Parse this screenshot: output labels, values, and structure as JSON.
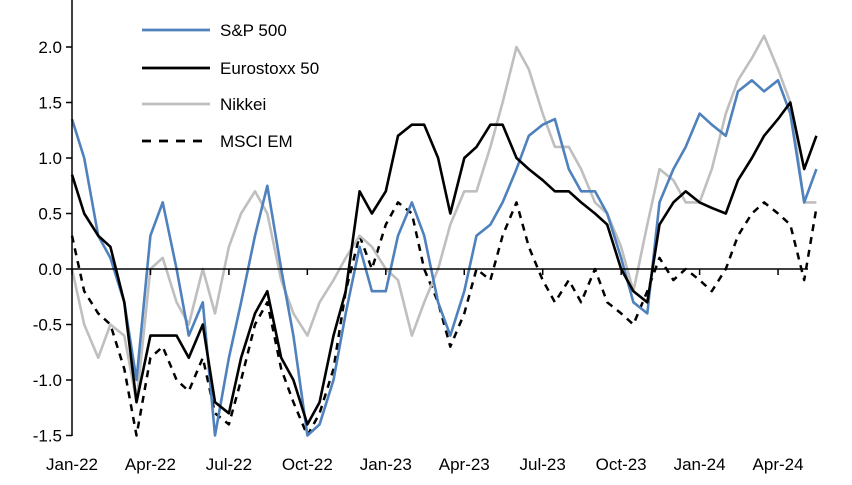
{
  "chart_data": {
    "type": "line",
    "title": "",
    "xlabel": "",
    "ylabel": "",
    "ylim": [
      -1.5,
      2.4
    ],
    "yticks": [
      "2.0",
      "1.5",
      "1.0",
      "0.5",
      "0.0",
      "-0.5",
      "-1.0",
      "-1.5"
    ],
    "ytick_values": [
      2.0,
      1.5,
      1.0,
      0.5,
      0.0,
      -0.5,
      -1.0,
      -1.5
    ],
    "xticks": [
      "Jan-22",
      "Apr-22",
      "Jul-22",
      "Oct-22",
      "Jan-23",
      "Apr-23",
      "Jul-23",
      "Oct-23",
      "Jan-24",
      "Apr-24"
    ],
    "xtick_dates": [
      "2022-01-01",
      "2022-04-01",
      "2022-07-01",
      "2022-10-01",
      "2023-01-01",
      "2023-04-01",
      "2023-07-01",
      "2023-10-01",
      "2024-01-01",
      "2024-04-01"
    ],
    "grid": false,
    "legend": "top-left",
    "x": [
      "2022-01-01",
      "2022-01-15",
      "2022-02-01",
      "2022-02-15",
      "2022-03-01",
      "2022-03-15",
      "2022-04-01",
      "2022-04-15",
      "2022-05-01",
      "2022-05-15",
      "2022-06-01",
      "2022-06-15",
      "2022-07-01",
      "2022-07-15",
      "2022-08-01",
      "2022-08-15",
      "2022-09-01",
      "2022-09-15",
      "2022-10-01",
      "2022-10-15",
      "2022-11-01",
      "2022-11-15",
      "2022-12-01",
      "2022-12-15",
      "2023-01-01",
      "2023-01-15",
      "2023-02-01",
      "2023-02-15",
      "2023-03-01",
      "2023-03-15",
      "2023-04-01",
      "2023-04-15",
      "2023-05-01",
      "2023-05-15",
      "2023-06-01",
      "2023-06-15",
      "2023-07-01",
      "2023-07-15",
      "2023-08-01",
      "2023-08-15",
      "2023-09-01",
      "2023-09-15",
      "2023-10-01",
      "2023-10-15",
      "2023-11-01",
      "2023-11-15",
      "2023-12-01",
      "2023-12-15",
      "2024-01-01",
      "2024-01-15",
      "2024-02-01",
      "2024-02-15",
      "2024-03-01",
      "2024-03-15",
      "2024-04-01",
      "2024-04-15",
      "2024-05-01",
      "2024-05-15"
    ],
    "series": [
      {
        "name": "S&P 500",
        "color": "#4f81bd",
        "style": "solid",
        "values": [
          1.35,
          1.0,
          0.3,
          0.1,
          -0.3,
          -1.0,
          0.3,
          0.6,
          0.0,
          -0.6,
          -0.3,
          -1.5,
          -0.8,
          -0.3,
          0.3,
          0.75,
          0.0,
          -0.6,
          -1.5,
          -1.4,
          -1.0,
          -0.4,
          0.2,
          -0.2,
          -0.2,
          0.3,
          0.6,
          0.3,
          -0.3,
          -0.6,
          -0.2,
          0.3,
          0.4,
          0.6,
          0.9,
          1.2,
          1.3,
          1.35,
          0.9,
          0.7,
          0.7,
          0.5,
          0.1,
          -0.3,
          -0.4,
          0.6,
          0.9,
          1.1,
          1.4,
          1.3,
          1.2,
          1.6,
          1.7,
          1.6,
          1.7,
          1.4,
          0.6,
          0.9
        ]
      },
      {
        "name": "Eurostoxx 50",
        "color": "#000000",
        "style": "solid",
        "values": [
          0.85,
          0.5,
          0.3,
          0.2,
          -0.3,
          -1.2,
          -0.6,
          -0.6,
          -0.6,
          -0.8,
          -0.5,
          -1.2,
          -1.3,
          -0.8,
          -0.4,
          -0.2,
          -0.8,
          -1.0,
          -1.4,
          -1.2,
          -0.6,
          -0.2,
          0.7,
          0.5,
          0.7,
          1.2,
          1.3,
          1.3,
          1.0,
          0.5,
          1.0,
          1.1,
          1.3,
          1.3,
          1.0,
          0.9,
          0.8,
          0.7,
          0.7,
          0.6,
          0.5,
          0.4,
          0.0,
          -0.2,
          -0.3,
          0.4,
          0.6,
          0.7,
          0.6,
          0.55,
          0.5,
          0.8,
          1.0,
          1.2,
          1.35,
          1.5,
          0.9,
          1.2
        ]
      },
      {
        "name": "Nikkei",
        "color": "#bfbfbf",
        "style": "solid",
        "values": [
          0.0,
          -0.5,
          -0.8,
          -0.5,
          -0.6,
          -1.2,
          0.0,
          0.1,
          -0.3,
          -0.5,
          0.0,
          -0.4,
          0.2,
          0.5,
          0.7,
          0.5,
          -0.1,
          -0.4,
          -0.6,
          -0.3,
          -0.1,
          0.1,
          0.3,
          0.2,
          0.0,
          -0.1,
          -0.6,
          -0.3,
          0.0,
          0.4,
          0.7,
          0.7,
          1.1,
          1.5,
          2.0,
          1.8,
          1.4,
          1.1,
          1.1,
          0.9,
          0.6,
          0.5,
          0.2,
          -0.2,
          0.4,
          0.9,
          0.8,
          0.6,
          0.6,
          0.9,
          1.4,
          1.7,
          1.9,
          2.1,
          1.8,
          1.5,
          0.6,
          0.6
        ]
      },
      {
        "name": "MSCI EM",
        "color": "#000000",
        "style": "dashed",
        "values": [
          0.3,
          -0.2,
          -0.4,
          -0.5,
          -0.9,
          -1.5,
          -0.8,
          -0.7,
          -1.0,
          -1.1,
          -0.8,
          -1.3,
          -1.4,
          -1.0,
          -0.5,
          -0.3,
          -0.9,
          -1.2,
          -1.5,
          -1.3,
          -0.9,
          -0.2,
          0.3,
          0.0,
          0.4,
          0.6,
          0.5,
          0.0,
          -0.3,
          -0.7,
          -0.4,
          0.0,
          -0.1,
          0.3,
          0.6,
          0.2,
          -0.1,
          -0.3,
          -0.1,
          -0.3,
          0.0,
          -0.3,
          -0.4,
          -0.5,
          -0.2,
          0.1,
          -0.1,
          0.0,
          -0.1,
          -0.2,
          0.0,
          0.3,
          0.5,
          0.6,
          0.5,
          0.4,
          -0.1,
          0.55
        ]
      }
    ]
  }
}
